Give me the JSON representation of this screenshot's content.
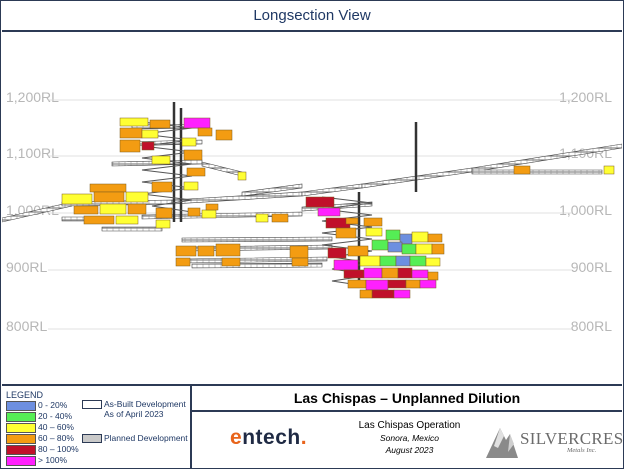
{
  "header": {
    "title": "Longsection View"
  },
  "elevation_labels": [
    "1,200RL",
    "1,100RL",
    "1,000RL",
    "900RL",
    "800RL"
  ],
  "legend": {
    "title": "LEGEND",
    "items": [
      {
        "label": "0 - 20%",
        "color": "#6d8fe0"
      },
      {
        "label": "20 - 40%",
        "color": "#55ee55"
      },
      {
        "label": "40 – 60%",
        "color": "#ffff33"
      },
      {
        "label": "60 – 80%",
        "color": "#f39c12"
      },
      {
        "label": "80 – 100%",
        "color": "#c0102a"
      },
      {
        "label": "> 100%",
        "color": "#ff20ff"
      }
    ],
    "as_built": {
      "line1": "As-Built Development",
      "line2": "As of April 2023"
    },
    "planned": {
      "label": "Planned Development",
      "color": "#c9c9c9"
    }
  },
  "info": {
    "main_title": "Las Chispas – Unplanned Dilution",
    "operation": "Las Chispas Operation",
    "location": "Sonora, Mexico",
    "date": "August 2023",
    "entech_logo": {
      "first": "e",
      "rest": "ntech",
      "dot": "."
    },
    "silvercrest_logo": {
      "name": "SILVERCREST",
      "sub": "Metals Inc."
    }
  }
}
